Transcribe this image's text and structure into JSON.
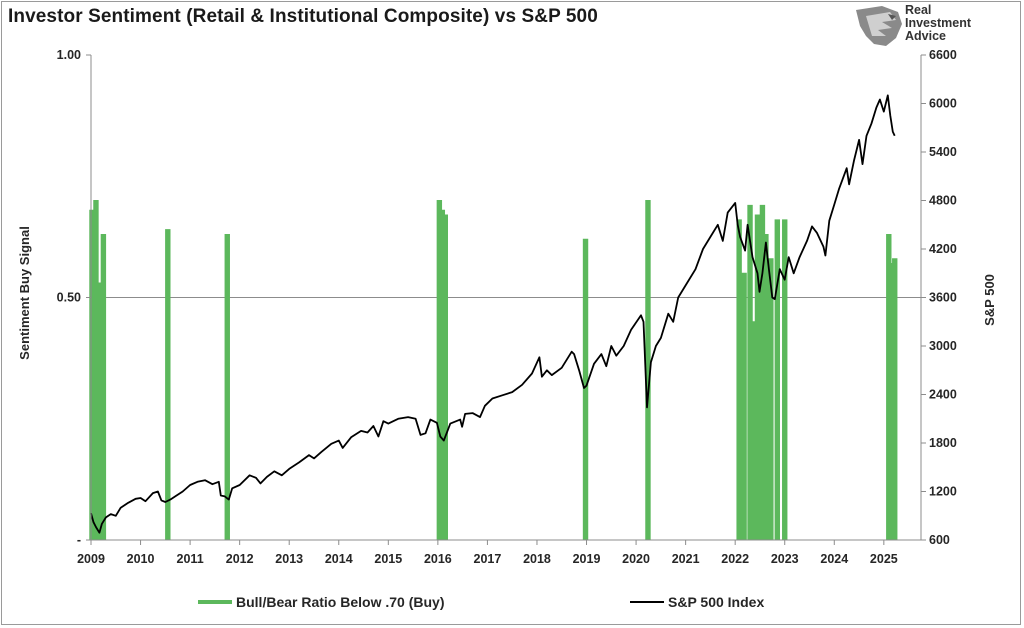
{
  "title": "Investor Sentiment (Retail & Institutional Composite) vs S&P 500",
  "logo": {
    "line1": "Real",
    "line2": "Investment",
    "line3": "Advice"
  },
  "chart_data": {
    "type": "line",
    "y_left_label": "Sentiment Buy Signal",
    "y_right_label": "S&P 500",
    "y_left_ticks": [
      "1.00",
      "0.50",
      "-"
    ],
    "y_left_range": [
      0,
      1
    ],
    "y_right_ticks": [
      6600,
      6000,
      5400,
      4800,
      4200,
      3600,
      3000,
      2400,
      1800,
      1200,
      600
    ],
    "y_right_range": [
      600,
      6600
    ],
    "x_ticks": [
      "2009",
      "2010",
      "2011",
      "2012",
      "2013",
      "2014",
      "2015",
      "2016",
      "2017",
      "2018",
      "2019",
      "2020",
      "2021",
      "2022",
      "2023",
      "2024",
      "2025"
    ],
    "x_range": [
      2009.0,
      2025.75
    ],
    "gridline_at": 0.5,
    "legend_position": "bottom",
    "series": [
      {
        "name": "Bull/Bear Ratio Below .70 (Buy)",
        "color": "#5cb85c",
        "axis": "left",
        "style": "signal-spikes",
        "spikes": [
          [
            2009.02,
            0.68
          ],
          [
            2009.1,
            0.7
          ],
          [
            2009.18,
            0.53
          ],
          [
            2009.25,
            0.63
          ],
          [
            2010.55,
            0.64
          ],
          [
            2011.75,
            0.63
          ],
          [
            2016.03,
            0.7
          ],
          [
            2016.09,
            0.68
          ],
          [
            2016.15,
            0.67
          ],
          [
            2018.98,
            0.62
          ],
          [
            2020.24,
            0.7
          ],
          [
            2022.08,
            0.66
          ],
          [
            2022.18,
            0.55
          ],
          [
            2022.3,
            0.69
          ],
          [
            2022.38,
            0.45
          ],
          [
            2022.45,
            0.67
          ],
          [
            2022.55,
            0.69
          ],
          [
            2022.62,
            0.63
          ],
          [
            2022.72,
            0.58
          ],
          [
            2022.85,
            0.66
          ],
          [
            2023.0,
            0.66
          ],
          [
            2025.1,
            0.63
          ],
          [
            2025.17,
            0.57
          ],
          [
            2025.22,
            0.58
          ]
        ]
      },
      {
        "name": "S&P 500 Index",
        "color": "#000000",
        "axis": "right",
        "points": [
          [
            2009.0,
            930
          ],
          [
            2009.05,
            820
          ],
          [
            2009.1,
            760
          ],
          [
            2009.17,
            690
          ],
          [
            2009.22,
            800
          ],
          [
            2009.3,
            880
          ],
          [
            2009.4,
            920
          ],
          [
            2009.5,
            900
          ],
          [
            2009.6,
            1000
          ],
          [
            2009.75,
            1060
          ],
          [
            2009.9,
            1110
          ],
          [
            2010.0,
            1120
          ],
          [
            2010.1,
            1080
          ],
          [
            2010.25,
            1180
          ],
          [
            2010.35,
            1200
          ],
          [
            2010.42,
            1090
          ],
          [
            2010.5,
            1070
          ],
          [
            2010.6,
            1100
          ],
          [
            2010.7,
            1140
          ],
          [
            2010.85,
            1200
          ],
          [
            2011.0,
            1280
          ],
          [
            2011.15,
            1320
          ],
          [
            2011.3,
            1340
          ],
          [
            2011.45,
            1290
          ],
          [
            2011.58,
            1320
          ],
          [
            2011.62,
            1150
          ],
          [
            2011.7,
            1140
          ],
          [
            2011.78,
            1100
          ],
          [
            2011.85,
            1240
          ],
          [
            2012.0,
            1280
          ],
          [
            2012.2,
            1400
          ],
          [
            2012.33,
            1370
          ],
          [
            2012.42,
            1300
          ],
          [
            2012.55,
            1380
          ],
          [
            2012.7,
            1450
          ],
          [
            2012.85,
            1400
          ],
          [
            2013.0,
            1480
          ],
          [
            2013.2,
            1560
          ],
          [
            2013.4,
            1650
          ],
          [
            2013.5,
            1610
          ],
          [
            2013.65,
            1690
          ],
          [
            2013.85,
            1790
          ],
          [
            2014.0,
            1830
          ],
          [
            2014.08,
            1740
          ],
          [
            2014.25,
            1870
          ],
          [
            2014.45,
            1950
          ],
          [
            2014.58,
            1930
          ],
          [
            2014.7,
            2010
          ],
          [
            2014.8,
            1880
          ],
          [
            2014.9,
            2070
          ],
          [
            2015.0,
            2040
          ],
          [
            2015.2,
            2100
          ],
          [
            2015.4,
            2120
          ],
          [
            2015.55,
            2100
          ],
          [
            2015.65,
            1900
          ],
          [
            2015.75,
            1920
          ],
          [
            2015.85,
            2090
          ],
          [
            2015.98,
            2050
          ],
          [
            2016.05,
            1880
          ],
          [
            2016.12,
            1830
          ],
          [
            2016.25,
            2040
          ],
          [
            2016.45,
            2090
          ],
          [
            2016.49,
            2000
          ],
          [
            2016.55,
            2160
          ],
          [
            2016.7,
            2170
          ],
          [
            2016.85,
            2120
          ],
          [
            2016.95,
            2260
          ],
          [
            2017.1,
            2350
          ],
          [
            2017.3,
            2390
          ],
          [
            2017.5,
            2430
          ],
          [
            2017.7,
            2520
          ],
          [
            2017.9,
            2660
          ],
          [
            2018.05,
            2860
          ],
          [
            2018.1,
            2620
          ],
          [
            2018.2,
            2700
          ],
          [
            2018.3,
            2640
          ],
          [
            2018.5,
            2730
          ],
          [
            2018.7,
            2930
          ],
          [
            2018.75,
            2900
          ],
          [
            2018.85,
            2700
          ],
          [
            2018.95,
            2480
          ],
          [
            2019.0,
            2510
          ],
          [
            2019.15,
            2780
          ],
          [
            2019.3,
            2900
          ],
          [
            2019.4,
            2750
          ],
          [
            2019.5,
            3000
          ],
          [
            2019.6,
            2880
          ],
          [
            2019.75,
            3000
          ],
          [
            2019.9,
            3200
          ],
          [
            2020.1,
            3380
          ],
          [
            2020.15,
            3300
          ],
          [
            2020.19,
            2700
          ],
          [
            2020.22,
            2240
          ],
          [
            2020.3,
            2800
          ],
          [
            2020.4,
            3000
          ],
          [
            2020.5,
            3100
          ],
          [
            2020.65,
            3400
          ],
          [
            2020.75,
            3300
          ],
          [
            2020.85,
            3600
          ],
          [
            2021.0,
            3750
          ],
          [
            2021.2,
            3950
          ],
          [
            2021.35,
            4200
          ],
          [
            2021.5,
            4350
          ],
          [
            2021.65,
            4500
          ],
          [
            2021.75,
            4300
          ],
          [
            2021.85,
            4650
          ],
          [
            2022.0,
            4770
          ],
          [
            2022.05,
            4500
          ],
          [
            2022.1,
            4350
          ],
          [
            2022.2,
            4180
          ],
          [
            2022.25,
            4500
          ],
          [
            2022.35,
            4100
          ],
          [
            2022.45,
            3900
          ],
          [
            2022.49,
            3670
          ],
          [
            2022.55,
            3900
          ],
          [
            2022.62,
            4280
          ],
          [
            2022.68,
            3950
          ],
          [
            2022.75,
            3600
          ],
          [
            2022.8,
            3580
          ],
          [
            2022.9,
            3950
          ],
          [
            2023.0,
            3820
          ],
          [
            2023.08,
            4100
          ],
          [
            2023.18,
            3900
          ],
          [
            2023.3,
            4100
          ],
          [
            2023.45,
            4300
          ],
          [
            2023.55,
            4480
          ],
          [
            2023.65,
            4400
          ],
          [
            2023.78,
            4230
          ],
          [
            2023.82,
            4120
          ],
          [
            2023.9,
            4550
          ],
          [
            2024.0,
            4750
          ],
          [
            2024.1,
            4950
          ],
          [
            2024.25,
            5200
          ],
          [
            2024.3,
            5000
          ],
          [
            2024.4,
            5300
          ],
          [
            2024.5,
            5550
          ],
          [
            2024.57,
            5250
          ],
          [
            2024.65,
            5600
          ],
          [
            2024.75,
            5750
          ],
          [
            2024.85,
            5950
          ],
          [
            2024.92,
            6050
          ],
          [
            2025.0,
            5900
          ],
          [
            2025.08,
            6100
          ],
          [
            2025.13,
            5850
          ],
          [
            2025.18,
            5650
          ],
          [
            2025.22,
            5600
          ]
        ]
      }
    ]
  }
}
